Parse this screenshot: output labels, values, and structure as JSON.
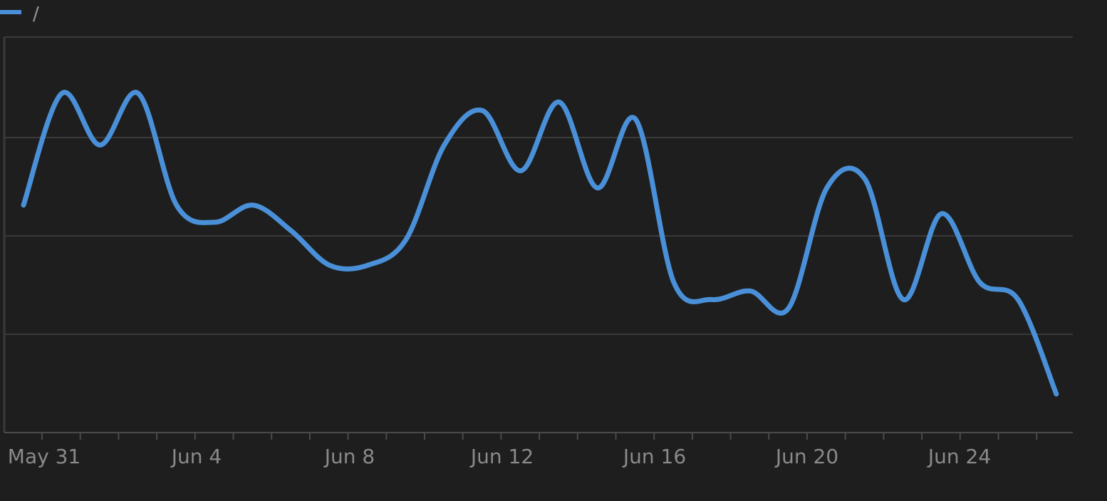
{
  "chart_data": {
    "type": "line",
    "title": "",
    "xlabel": "",
    "ylabel": "",
    "legend": {
      "position": "top-left"
    },
    "grid": {
      "y": true,
      "x": false
    },
    "x_tick_labels": [
      "May 31",
      "Jun 4",
      "Jun 8",
      "Jun 12",
      "Jun 16",
      "Jun 20",
      "Jun 24"
    ],
    "x": [
      "May 30",
      "May 31",
      "Jun 1",
      "Jun 2",
      "Jun 3",
      "Jun 4",
      "Jun 5",
      "Jun 6",
      "Jun 7",
      "Jun 8",
      "Jun 9",
      "Jun 10",
      "Jun 11",
      "Jun 12",
      "Jun 13",
      "Jun 14",
      "Jun 15",
      "Jun 16",
      "Jun 17",
      "Jun 18",
      "Jun 19",
      "Jun 20",
      "Jun 21",
      "Jun 22",
      "Jun 23",
      "Jun 24",
      "Jun 25",
      "Jun 26"
    ],
    "series": [
      {
        "name": "/",
        "color": "#4a90d9",
        "values": [
          2.4,
          3.7,
          3.1,
          3.7,
          2.4,
          2.2,
          2.4,
          2.1,
          1.7,
          1.7,
          2.0,
          3.1,
          3.5,
          2.8,
          3.6,
          2.6,
          3.4,
          1.5,
          1.3,
          1.4,
          1.2,
          2.6,
          2.7,
          1.3,
          2.3,
          1.5,
          1.3,
          0.2
        ]
      }
    ],
    "ylim": [
      0,
      4
    ]
  }
}
